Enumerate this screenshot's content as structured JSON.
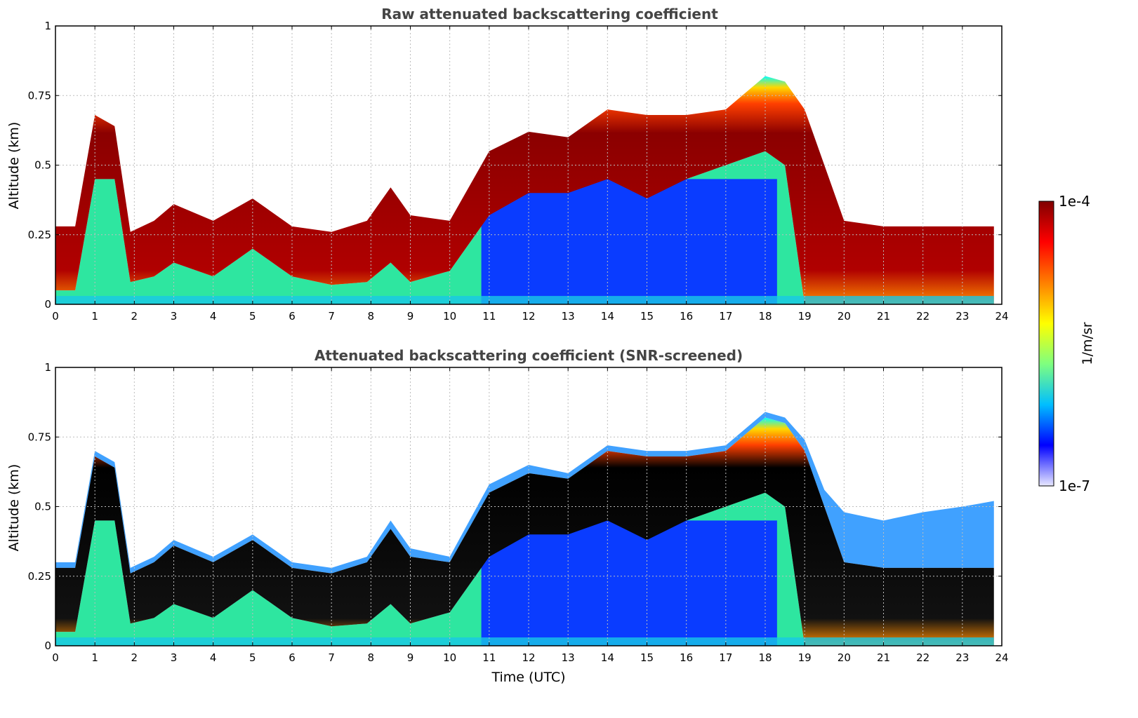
{
  "chart_data": [
    {
      "type": "heatmap",
      "title": "Raw attenuated backscattering coefficient",
      "xlabel": "",
      "ylabel": "Altitude (km)",
      "xlim": [
        0,
        24
      ],
      "ylim": [
        0,
        1
      ],
      "x_ticks": [
        "0",
        "1",
        "2",
        "3",
        "4",
        "5",
        "6",
        "7",
        "8",
        "9",
        "10",
        "11",
        "12",
        "13",
        "14",
        "15",
        "16",
        "17",
        "18",
        "19",
        "20",
        "21",
        "22",
        "23",
        "24"
      ],
      "y_ticks": [
        "0",
        "0.25",
        "0.5",
        "0.75",
        "1"
      ],
      "grid": true,
      "profile": {
        "time_utc": [
          0,
          0.5,
          1,
          1.5,
          1.9,
          2.5,
          3,
          4,
          5,
          6,
          7,
          7.9,
          8.5,
          9,
          10,
          11,
          12,
          13,
          14,
          15,
          16,
          17,
          18,
          18.5,
          19,
          19.5,
          20,
          21,
          22,
          23,
          23.8
        ],
        "layer_top_km": [
          0.28,
          0.28,
          0.68,
          0.64,
          0.26,
          0.3,
          0.36,
          0.3,
          0.38,
          0.28,
          0.26,
          0.3,
          0.42,
          0.32,
          0.3,
          0.55,
          0.62,
          0.6,
          0.7,
          0.68,
          0.68,
          0.7,
          0.82,
          0.8,
          0.7,
          0.5,
          0.3,
          0.28,
          0.28,
          0.28,
          0.28
        ],
        "layer_bottom_km": [
          0.05,
          0.05,
          0.45,
          0.45,
          0.08,
          0.1,
          0.15,
          0.1,
          0.2,
          0.1,
          0.07,
          0.08,
          0.15,
          0.08,
          0.12,
          0.32,
          0.4,
          0.4,
          0.45,
          0.38,
          0.45,
          0.5,
          0.55,
          0.5,
          0.0,
          0.0,
          0.0,
          0.0,
          0.0,
          0.0,
          0.0
        ]
      }
    },
    {
      "type": "heatmap",
      "title": "Attenuated backscattering coefficient (SNR-screened)",
      "xlabel": "Time (UTC)",
      "ylabel": "Altitude (km)",
      "xlim": [
        0,
        24
      ],
      "ylim": [
        0,
        1
      ],
      "x_ticks": [
        "0",
        "1",
        "2",
        "3",
        "4",
        "5",
        "6",
        "7",
        "8",
        "9",
        "10",
        "11",
        "12",
        "13",
        "14",
        "15",
        "16",
        "17",
        "18",
        "19",
        "20",
        "21",
        "22",
        "23",
        "24"
      ],
      "y_ticks": [
        "0",
        "0.25",
        "0.5",
        "0.75",
        "1"
      ],
      "grid": true,
      "profile": {
        "time_utc": [
          0,
          0.5,
          1,
          1.5,
          1.9,
          2.5,
          3,
          4,
          5,
          6,
          7,
          7.9,
          8.5,
          9,
          10,
          11,
          12,
          13,
          14,
          15,
          16,
          17,
          18,
          18.5,
          19,
          19.5,
          20,
          21,
          22,
          23,
          23.8
        ],
        "layer_top_km": [
          0.28,
          0.28,
          0.68,
          0.64,
          0.26,
          0.3,
          0.36,
          0.3,
          0.38,
          0.28,
          0.26,
          0.3,
          0.42,
          0.32,
          0.3,
          0.55,
          0.62,
          0.6,
          0.7,
          0.68,
          0.68,
          0.7,
          0.82,
          0.8,
          0.7,
          0.5,
          0.3,
          0.28,
          0.28,
          0.28,
          0.28
        ],
        "layer_bottom_km": [
          0.05,
          0.05,
          0.45,
          0.45,
          0.08,
          0.1,
          0.15,
          0.1,
          0.2,
          0.1,
          0.07,
          0.08,
          0.15,
          0.08,
          0.12,
          0.32,
          0.4,
          0.4,
          0.45,
          0.38,
          0.45,
          0.5,
          0.55,
          0.5,
          0.0,
          0.0,
          0.0,
          0.0,
          0.0,
          0.0,
          0.0
        ],
        "aerosol_top_km": [
          0.3,
          0.3,
          0.7,
          0.66,
          0.28,
          0.32,
          0.38,
          0.32,
          0.4,
          0.3,
          0.28,
          0.32,
          0.45,
          0.35,
          0.32,
          0.58,
          0.65,
          0.62,
          0.72,
          0.7,
          0.7,
          0.72,
          0.84,
          0.82,
          0.74,
          0.56,
          0.48,
          0.45,
          0.48,
          0.5,
          0.52
        ]
      }
    }
  ],
  "colorbar": {
    "label": "1/m/sr",
    "max_label": "1e-4",
    "min_label": "1e-7",
    "scale": "log",
    "colormap": "jet",
    "colors": [
      "#e8e8ff",
      "#0000ff",
      "#00bfff",
      "#7fff7f",
      "#ffff00",
      "#ff7f00",
      "#ff0000",
      "#800000"
    ]
  }
}
